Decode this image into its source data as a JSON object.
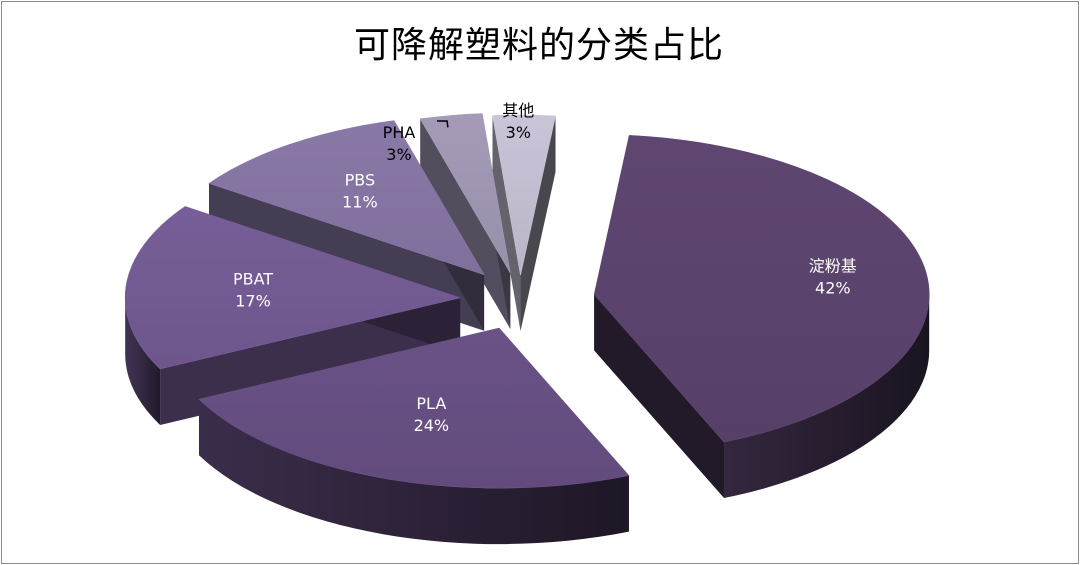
{
  "chart_data": {
    "type": "pie",
    "title": "可降解塑料的分类占比",
    "slices": [
      {
        "label": "淀粉基",
        "value": 42,
        "value_label": "42%",
        "color": "#5e4671",
        "label_color": "#ffffff"
      },
      {
        "label": "PLA",
        "value": 24,
        "value_label": "24%",
        "color": "#6a5287",
        "label_color": "#ffffff"
      },
      {
        "label": "PBAT",
        "value": 17,
        "value_label": "17%",
        "color": "#775e98",
        "label_color": "#ffffff"
      },
      {
        "label": "PBS",
        "value": 11,
        "value_label": "11%",
        "color": "#8a79a8",
        "label_color": "#ffffff"
      },
      {
        "label": "PHA",
        "value": 3,
        "value_label": "3%",
        "color": "#a59bb9",
        "label_color": "#000000"
      },
      {
        "label": "其他",
        "value": 3,
        "value_label": "3%",
        "color": "#cac4d8",
        "label_color": "#000000"
      }
    ],
    "exploded": true,
    "three_d": true,
    "legend": "none"
  }
}
